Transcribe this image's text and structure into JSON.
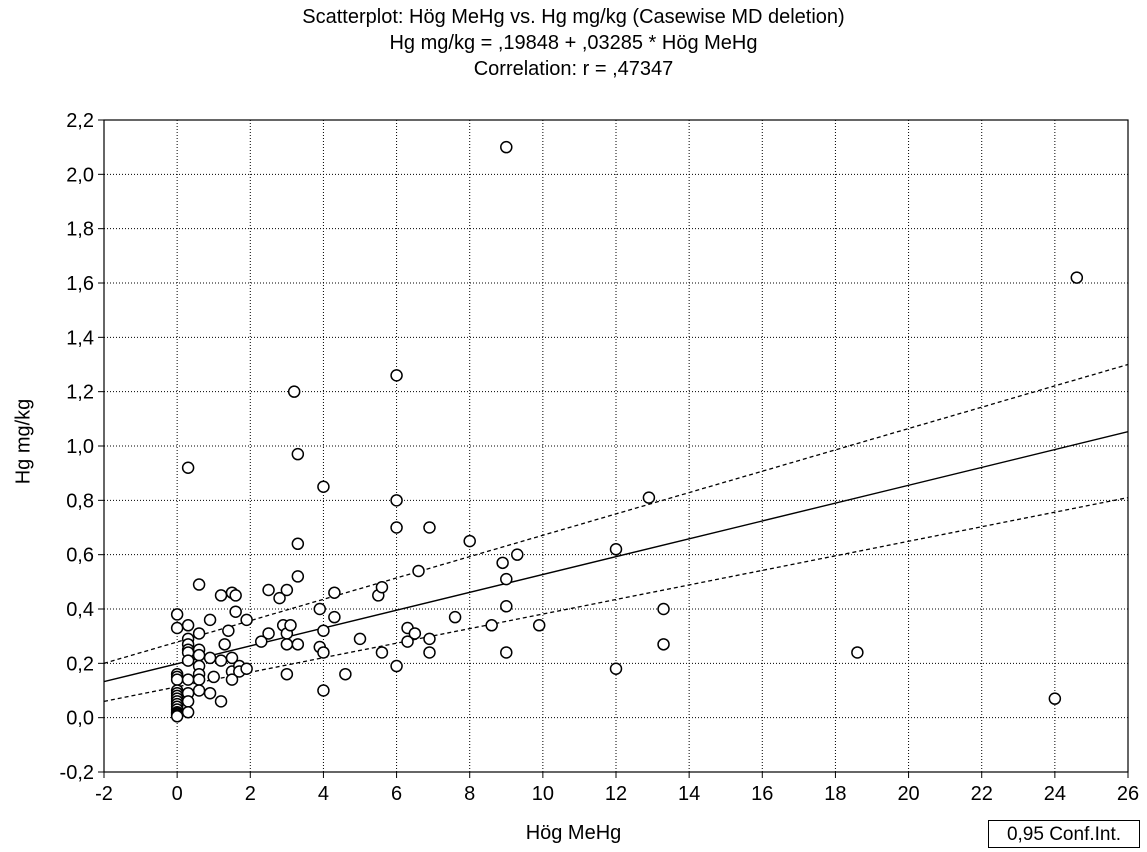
{
  "chart_data": {
    "type": "scatter",
    "title": "Scatterplot: Hög MeHg vs. Hg mg/kg (Casewise MD deletion)",
    "subtitle": "Hg mg/kg = ,19848 + ,03285 * Hög MeHg",
    "correlation_label": "Correlation: r = ,47347",
    "xlabel": "Hög MeHg",
    "ylabel": "Hg mg/kg",
    "xlim": [
      -2,
      26
    ],
    "ylim": [
      -0.2,
      2.2
    ],
    "x_ticks": [
      -2,
      0,
      2,
      4,
      6,
      8,
      10,
      12,
      14,
      16,
      18,
      20,
      22,
      24,
      26
    ],
    "x_tick_labels": [
      "-2",
      "0",
      "2",
      "4",
      "6",
      "8",
      "10",
      "12",
      "14",
      "16",
      "18",
      "20",
      "22",
      "24",
      "26"
    ],
    "y_ticks": [
      -0.2,
      0.0,
      0.2,
      0.4,
      0.6,
      0.8,
      1.0,
      1.2,
      1.4,
      1.6,
      1.8,
      2.0,
      2.2
    ],
    "y_tick_labels": [
      "-0,2",
      "0,0",
      "0,2",
      "0,4",
      "0,6",
      "0,8",
      "1,0",
      "1,2",
      "1,4",
      "1,6",
      "1,8",
      "2,0",
      "2,2"
    ],
    "grid": true,
    "regression": {
      "intercept": 0.19848,
      "slope": 0.03285
    },
    "conf_band": {
      "upper": [
        [
          -2,
          0.2
        ],
        [
          26,
          1.3
        ]
      ],
      "lower": [
        [
          -2,
          0.06
        ],
        [
          26,
          0.81
        ]
      ]
    },
    "legend_label": "0,95 Conf.Int.",
    "legend_position": "bottom-right",
    "points": [
      [
        0,
        0.38
      ],
      [
        0,
        0.33
      ],
      [
        0,
        0.16
      ],
      [
        0,
        0.15
      ],
      [
        0,
        0.14
      ],
      [
        0,
        0.1
      ],
      [
        0,
        0.09
      ],
      [
        0,
        0.08
      ],
      [
        0,
        0.07
      ],
      [
        0,
        0.06
      ],
      [
        0,
        0.05
      ],
      [
        0,
        0.04
      ],
      [
        0,
        0.03
      ],
      [
        0,
        0.02
      ],
      [
        0,
        0.015
      ],
      [
        0,
        0.01
      ],
      [
        0,
        0.005
      ],
      [
        0.3,
        0.92
      ],
      [
        0.3,
        0.34
      ],
      [
        0.3,
        0.29
      ],
      [
        0.3,
        0.27
      ],
      [
        0.3,
        0.25
      ],
      [
        0.3,
        0.24
      ],
      [
        0.3,
        0.21
      ],
      [
        0.3,
        0.14
      ],
      [
        0.3,
        0.09
      ],
      [
        0.3,
        0.06
      ],
      [
        0.3,
        0.02
      ],
      [
        0.6,
        0.49
      ],
      [
        0.6,
        0.31
      ],
      [
        0.6,
        0.25
      ],
      [
        0.6,
        0.23
      ],
      [
        0.6,
        0.19
      ],
      [
        0.6,
        0.16
      ],
      [
        0.6,
        0.14
      ],
      [
        0.6,
        0.1
      ],
      [
        0.9,
        0.36
      ],
      [
        0.9,
        0.22
      ],
      [
        0.9,
        0.09
      ],
      [
        1.0,
        0.15
      ],
      [
        1.2,
        0.45
      ],
      [
        1.2,
        0.21
      ],
      [
        1.2,
        0.06
      ],
      [
        1.3,
        0.27
      ],
      [
        1.4,
        0.32
      ],
      [
        1.5,
        0.46
      ],
      [
        1.5,
        0.22
      ],
      [
        1.5,
        0.17
      ],
      [
        1.5,
        0.14
      ],
      [
        1.6,
        0.45
      ],
      [
        1.6,
        0.39
      ],
      [
        1.7,
        0.19
      ],
      [
        1.7,
        0.17
      ],
      [
        1.9,
        0.36
      ],
      [
        1.9,
        0.18
      ],
      [
        2.3,
        0.28
      ],
      [
        2.5,
        0.47
      ],
      [
        2.5,
        0.31
      ],
      [
        2.8,
        0.44
      ],
      [
        2.9,
        0.34
      ],
      [
        3.0,
        0.47
      ],
      [
        3.0,
        0.31
      ],
      [
        3.0,
        0.27
      ],
      [
        3.0,
        0.16
      ],
      [
        3.1,
        0.34
      ],
      [
        3.2,
        1.2
      ],
      [
        3.3,
        0.97
      ],
      [
        3.3,
        0.64
      ],
      [
        3.3,
        0.52
      ],
      [
        3.3,
        0.27
      ],
      [
        3.9,
        0.4
      ],
      [
        3.9,
        0.26
      ],
      [
        4.0,
        0.85
      ],
      [
        4.0,
        0.32
      ],
      [
        4.0,
        0.24
      ],
      [
        4.0,
        0.1
      ],
      [
        4.3,
        0.46
      ],
      [
        4.3,
        0.37
      ],
      [
        4.6,
        0.16
      ],
      [
        5.0,
        0.29
      ],
      [
        5.5,
        0.45
      ],
      [
        5.6,
        0.48
      ],
      [
        5.6,
        0.24
      ],
      [
        6.0,
        1.26
      ],
      [
        6.0,
        0.8
      ],
      [
        6.0,
        0.7
      ],
      [
        6.0,
        0.19
      ],
      [
        6.3,
        0.33
      ],
      [
        6.3,
        0.28
      ],
      [
        6.5,
        0.31
      ],
      [
        6.6,
        0.54
      ],
      [
        6.9,
        0.7
      ],
      [
        6.9,
        0.29
      ],
      [
        6.9,
        0.24
      ],
      [
        7.6,
        0.37
      ],
      [
        8.0,
        0.65
      ],
      [
        8.6,
        0.34
      ],
      [
        8.9,
        0.57
      ],
      [
        9.0,
        2.1
      ],
      [
        9.0,
        0.51
      ],
      [
        9.0,
        0.41
      ],
      [
        9.0,
        0.24
      ],
      [
        9.3,
        0.6
      ],
      [
        9.9,
        0.34
      ],
      [
        12.0,
        0.62
      ],
      [
        12.0,
        0.18
      ],
      [
        12.9,
        0.81
      ],
      [
        13.3,
        0.4
      ],
      [
        13.3,
        0.27
      ],
      [
        18.6,
        0.24
      ],
      [
        24.0,
        0.07
      ],
      [
        24.6,
        1.62
      ]
    ]
  }
}
